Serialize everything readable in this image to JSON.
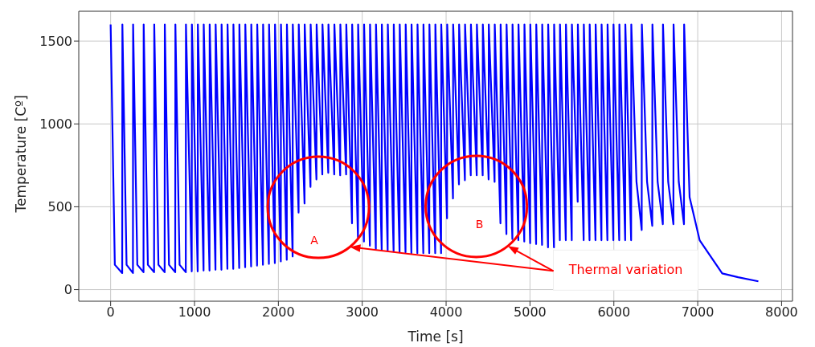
{
  "chart_data": {
    "type": "line",
    "xlabel": "Time [s]",
    "ylabel": "Temperature [Cº]",
    "xlim": [
      -380,
      8130
    ],
    "ylim": [
      -70,
      1680
    ],
    "xticks": [
      0,
      1000,
      2000,
      3000,
      4000,
      5000,
      6000,
      7000,
      8000
    ],
    "yticks": [
      0,
      500,
      1000,
      1500
    ],
    "grid": true,
    "legend": false,
    "marker": "none",
    "line_style": "solid",
    "annotations": [
      "A",
      "B",
      "Thermal variation"
    ],
    "series": [
      {
        "color": "#0000ff",
        "x": [
          0,
          50,
          138,
          140,
          190,
          266,
          268,
          318,
          392,
          394,
          444,
          518,
          520,
          570,
          644,
          646,
          696,
          770,
          772,
          822,
          896,
          898,
          967,
          969,
          1038,
          1040,
          1108,
          1110,
          1179,
          1181,
          1250,
          1252,
          1321,
          1323,
          1392,
          1394,
          1462,
          1464,
          1533,
          1535,
          1604,
          1606,
          1675,
          1677,
          1746,
          1748,
          1816,
          1818,
          1887,
          1889,
          1958,
          1960,
          2029,
          2031,
          2100,
          2102,
          2170,
          2172,
          2241,
          2243,
          2312,
          2314,
          2383,
          2385,
          2454,
          2456,
          2524,
          2526,
          2595,
          2597,
          2666,
          2668,
          2737,
          2739,
          2808,
          2810,
          2878,
          2880,
          2949,
          2951,
          3020,
          3022,
          3091,
          3093,
          3162,
          3164,
          3232,
          3234,
          3303,
          3305,
          3374,
          3376,
          3445,
          3447,
          3516,
          3518,
          3586,
          3588,
          3657,
          3659,
          3728,
          3730,
          3799,
          3801,
          3870,
          3872,
          3940,
          3942,
          4011,
          4013,
          4082,
          4084,
          4153,
          4155,
          4224,
          4226,
          4294,
          4296,
          4365,
          4367,
          4436,
          4438,
          4507,
          4509,
          4578,
          4580,
          4648,
          4650,
          4719,
          4721,
          4790,
          4792,
          4861,
          4863,
          4932,
          4934,
          5002,
          5004,
          5073,
          5075,
          5144,
          5146,
          5215,
          5217,
          5286,
          5288,
          5356,
          5358,
          5427,
          5429,
          5498,
          5500,
          5569,
          5571,
          5640,
          5642,
          5710,
          5712,
          5781,
          5783,
          5852,
          5854,
          5923,
          5925,
          5994,
          5996,
          6064,
          6066,
          6135,
          6137,
          6206,
          6208,
          6270,
          6332,
          6334,
          6396,
          6458,
          6460,
          6522,
          6584,
          6586,
          6648,
          6710,
          6712,
          6774,
          6836,
          6838,
          6903,
          7023,
          7292,
          7481,
          7723
        ],
        "values": [
          1600,
          150,
          100,
          1600,
          150,
          100,
          1600,
          150,
          105,
          1600,
          150,
          105,
          1600,
          150,
          105,
          1600,
          150,
          105,
          1600,
          150,
          105,
          1600,
          110,
          1600,
          110,
          1600,
          115,
          1600,
          115,
          1600,
          120,
          1600,
          120,
          1600,
          125,
          1600,
          125,
          1600,
          130,
          1600,
          135,
          1600,
          140,
          1600,
          145,
          1600,
          150,
          1600,
          155,
          1600,
          160,
          1600,
          170,
          1600,
          180,
          1600,
          200,
          1600,
          465,
          1600,
          520,
          1600,
          620,
          1600,
          665,
          1600,
          695,
          1600,
          705,
          1600,
          695,
          1600,
          690,
          1600,
          695,
          1600,
          400,
          1600,
          315,
          1600,
          290,
          1600,
          265,
          1600,
          245,
          1600,
          240,
          1600,
          235,
          1600,
          230,
          1600,
          225,
          1600,
          225,
          1600,
          220,
          1600,
          220,
          1600,
          220,
          1600,
          220,
          1600,
          220,
          1600,
          220,
          1600,
          430,
          1600,
          550,
          1600,
          635,
          1600,
          660,
          1600,
          690,
          1600,
          690,
          1600,
          690,
          1600,
          665,
          1600,
          650,
          1600,
          400,
          1600,
          335,
          1600,
          305,
          1600,
          298,
          1600,
          290,
          1600,
          280,
          1600,
          275,
          1600,
          270,
          1600,
          255,
          1600,
          255,
          1600,
          298,
          1600,
          298,
          1600,
          298,
          1600,
          530,
          1600,
          298,
          1600,
          298,
          1600,
          298,
          1600,
          298,
          1600,
          298,
          1600,
          298,
          1600,
          298,
          1600,
          298,
          1600,
          298,
          1600,
          650,
          360,
          1600,
          650,
          385,
          1600,
          650,
          395,
          1600,
          650,
          395,
          1600,
          650,
          395,
          1600,
          558,
          298,
          98,
          75,
          50
        ]
      }
    ]
  }
}
